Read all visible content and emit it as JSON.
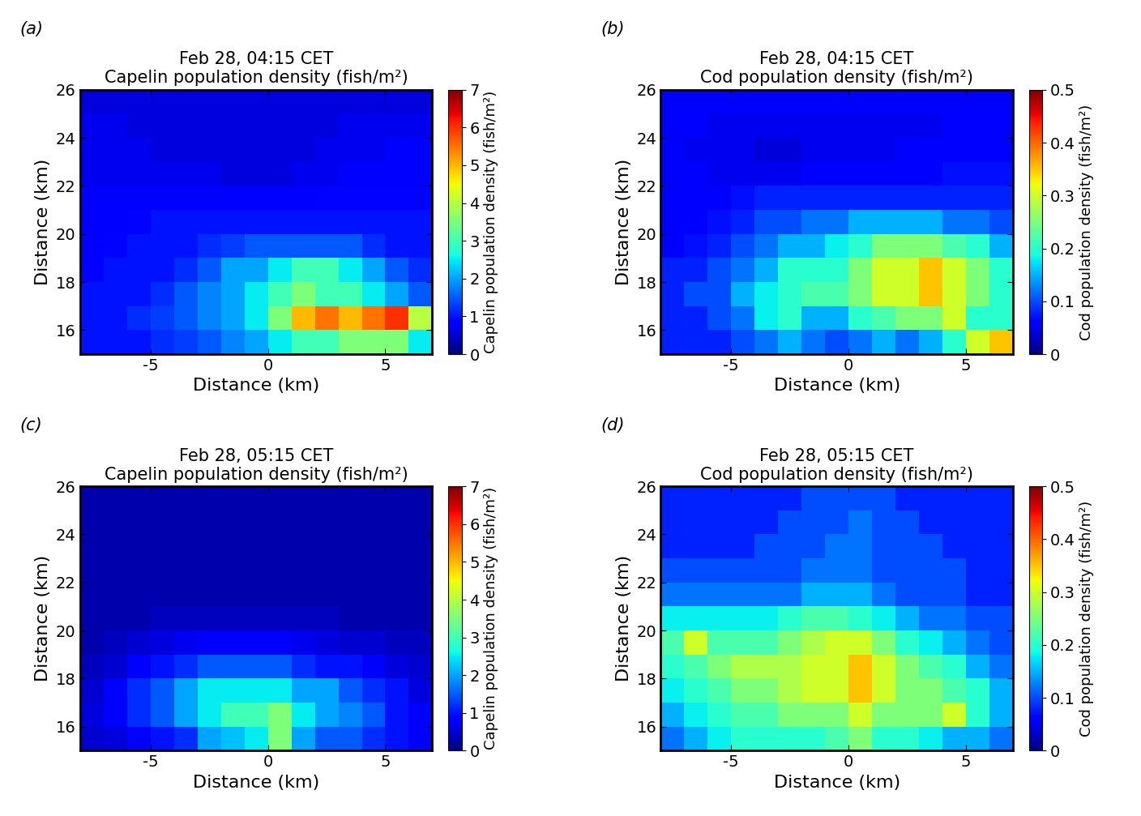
{
  "chart_data": [
    {
      "type": "heatmap",
      "panel": "(a)",
      "title": "Feb 28, 04:15 CET",
      "subtitle": "Capelin population density (fish/m²)",
      "x_label": "Distance (km)",
      "y_label": "Distance (km)",
      "xlim": [
        -8,
        7
      ],
      "ylim": [
        15,
        26
      ],
      "xticks": [
        -5,
        0,
        5
      ],
      "yticks": [
        16,
        18,
        20,
        22,
        24,
        26
      ],
      "x_edges": [
        -8,
        -7,
        -6,
        -5,
        -4,
        -3,
        -2,
        -1,
        0,
        1,
        2,
        3,
        4,
        5,
        6,
        7
      ],
      "y_edges": [
        15,
        16,
        17,
        18,
        19,
        20,
        21,
        22,
        23,
        24,
        25,
        26
      ],
      "colorbar_label": "Capelin population density (fish/m²)",
      "colorbar_lim": [
        0,
        7
      ],
      "colorbar_ticks": [
        0,
        1,
        2,
        3,
        4,
        5,
        6,
        7
      ],
      "cells": [
        [
          1,
          1,
          1,
          1.2,
          1.3,
          1.5,
          1.8,
          2,
          2.5,
          3,
          3,
          3.5,
          3.5,
          3.5,
          2.5
        ],
        [
          1,
          1,
          1.2,
          1.3,
          1.5,
          1.8,
          2,
          2.5,
          3.5,
          5,
          5.5,
          5,
          5.5,
          6,
          4
        ],
        [
          1,
          1,
          1,
          1.2,
          1.5,
          1.8,
          2,
          2.5,
          3,
          3.5,
          3,
          3,
          2.5,
          2,
          1.5
        ],
        [
          0.9,
          1,
          1,
          1,
          1.2,
          1.5,
          2,
          2,
          2.5,
          3,
          3,
          2.5,
          2,
          1.5,
          1.2
        ],
        [
          0.8,
          0.9,
          1,
          1,
          1,
          1.2,
          1.3,
          1.5,
          1.5,
          1.5,
          1.5,
          1.5,
          1.2,
          1,
          1
        ],
        [
          0.8,
          0.8,
          0.9,
          1,
          1,
          1,
          1,
          1,
          1,
          1,
          1,
          1,
          1,
          1,
          1
        ],
        [
          0.8,
          0.8,
          0.8,
          0.8,
          0.8,
          0.8,
          0.8,
          0.8,
          0.8,
          0.8,
          0.9,
          0.9,
          0.9,
          0.9,
          0.9
        ],
        [
          0.7,
          0.7,
          0.7,
          0.7,
          0.7,
          0.7,
          0.6,
          0.6,
          0.6,
          0.7,
          0.7,
          0.8,
          0.8,
          0.8,
          0.8
        ],
        [
          0.7,
          0.7,
          0.7,
          0.6,
          0.6,
          0.6,
          0.6,
          0.6,
          0.6,
          0.6,
          0.7,
          0.7,
          0.7,
          0.8,
          0.8
        ],
        [
          0.7,
          0.7,
          0.6,
          0.6,
          0.6,
          0.6,
          0.6,
          0.6,
          0.6,
          0.6,
          0.6,
          0.7,
          0.7,
          0.7,
          0.7
        ],
        [
          0.6,
          0.6,
          0.6,
          0.6,
          0.6,
          0.6,
          0.6,
          0.6,
          0.6,
          0.6,
          0.6,
          0.6,
          0.6,
          0.6,
          0.6
        ]
      ]
    },
    {
      "type": "heatmap",
      "panel": "(b)",
      "title": "Feb 28, 04:15 CET",
      "subtitle": "Cod population density (fish/m²)",
      "x_label": "Distance (km)",
      "y_label": "Distance (km)",
      "xlim": [
        -8,
        7
      ],
      "ylim": [
        15,
        26
      ],
      "xticks": [
        -5,
        0,
        5
      ],
      "yticks": [
        16,
        18,
        20,
        22,
        24,
        26
      ],
      "x_edges": [
        -8,
        -7,
        -6,
        -5,
        -4,
        -3,
        -2,
        -1,
        0,
        1,
        2,
        3,
        4,
        5,
        6,
        7
      ],
      "y_edges": [
        15,
        16,
        17,
        18,
        19,
        20,
        21,
        22,
        23,
        24,
        25,
        26
      ],
      "colorbar_label": "Cod population density (fish/m²)",
      "colorbar_lim": [
        0,
        0.5
      ],
      "colorbar_ticks": [
        0,
        0.1,
        0.2,
        0.3,
        0.4,
        0.5
      ],
      "cells": [
        [
          0.08,
          0.08,
          0.08,
          0.1,
          0.12,
          0.15,
          0.12,
          0.1,
          0.12,
          0.15,
          0.12,
          0.15,
          0.2,
          0.3,
          0.35
        ],
        [
          0.08,
          0.08,
          0.1,
          0.12,
          0.18,
          0.2,
          0.15,
          0.15,
          0.2,
          0.22,
          0.25,
          0.25,
          0.3,
          0.2,
          0.2
        ],
        [
          0.08,
          0.1,
          0.1,
          0.15,
          0.18,
          0.2,
          0.22,
          0.22,
          0.25,
          0.3,
          0.3,
          0.35,
          0.3,
          0.25,
          0.2
        ],
        [
          0.08,
          0.08,
          0.1,
          0.12,
          0.15,
          0.2,
          0.2,
          0.2,
          0.25,
          0.3,
          0.3,
          0.35,
          0.3,
          0.25,
          0.2
        ],
        [
          0.06,
          0.07,
          0.08,
          0.1,
          0.12,
          0.15,
          0.15,
          0.18,
          0.2,
          0.25,
          0.25,
          0.25,
          0.22,
          0.2,
          0.15
        ],
        [
          0.06,
          0.06,
          0.07,
          0.08,
          0.1,
          0.1,
          0.12,
          0.12,
          0.15,
          0.15,
          0.15,
          0.15,
          0.12,
          0.12,
          0.1
        ],
        [
          0.06,
          0.06,
          0.06,
          0.07,
          0.08,
          0.08,
          0.08,
          0.08,
          0.08,
          0.08,
          0.08,
          0.08,
          0.08,
          0.08,
          0.08
        ],
        [
          0.06,
          0.06,
          0.05,
          0.05,
          0.05,
          0.05,
          0.06,
          0.06,
          0.06,
          0.06,
          0.06,
          0.06,
          0.07,
          0.07,
          0.07
        ],
        [
          0.06,
          0.05,
          0.05,
          0.05,
          0.04,
          0.04,
          0.05,
          0.05,
          0.05,
          0.05,
          0.06,
          0.06,
          0.06,
          0.06,
          0.06
        ],
        [
          0.06,
          0.06,
          0.05,
          0.05,
          0.05,
          0.05,
          0.05,
          0.05,
          0.05,
          0.05,
          0.05,
          0.05,
          0.06,
          0.06,
          0.06
        ],
        [
          0.06,
          0.06,
          0.06,
          0.06,
          0.06,
          0.06,
          0.06,
          0.06,
          0.06,
          0.06,
          0.06,
          0.06,
          0.06,
          0.06,
          0.06
        ]
      ]
    },
    {
      "type": "heatmap",
      "panel": "(c)",
      "title": "Feb 28, 05:15 CET",
      "subtitle": "Capelin population density (fish/m²)",
      "x_label": "Distance (km)",
      "y_label": "Distance (km)",
      "xlim": [
        -8,
        7
      ],
      "ylim": [
        15,
        26
      ],
      "xticks": [
        -5,
        0,
        5
      ],
      "yticks": [
        16,
        18,
        20,
        22,
        24,
        26
      ],
      "x_edges": [
        -8,
        -7,
        -6,
        -5,
        -4,
        -3,
        -2,
        -1,
        0,
        1,
        2,
        3,
        4,
        5,
        6,
        7
      ],
      "y_edges": [
        15,
        16,
        17,
        18,
        19,
        20,
        21,
        22,
        23,
        24,
        25,
        26
      ],
      "colorbar_label": "Capelin population density (fish/m²)",
      "colorbar_lim": [
        0,
        7
      ],
      "colorbar_ticks": [
        0,
        1,
        2,
        3,
        4,
        5,
        6,
        7
      ],
      "cells": [
        [
          0.5,
          0.6,
          0.8,
          1,
          1.2,
          2,
          2.2,
          2.5,
          3.5,
          2,
          1.5,
          1.5,
          1.2,
          1,
          0.8
        ],
        [
          0.6,
          0.8,
          1.2,
          1.5,
          2,
          2.5,
          3,
          3,
          3.5,
          2.5,
          2,
          1.8,
          1.5,
          1,
          0.8
        ],
        [
          0.5,
          0.8,
          1.2,
          1.5,
          2,
          2.5,
          2.5,
          2.5,
          2.5,
          2,
          2,
          1.5,
          1.2,
          1,
          0.6
        ],
        [
          0.4,
          0.5,
          0.8,
          1,
          1.2,
          1.5,
          1.5,
          1.5,
          1.5,
          1.2,
          1,
          1,
          0.8,
          0.6,
          0.5
        ],
        [
          0.3,
          0.4,
          0.5,
          0.6,
          0.7,
          0.8,
          0.8,
          0.8,
          0.8,
          0.7,
          0.6,
          0.5,
          0.5,
          0.4,
          0.4
        ],
        [
          0.3,
          0.3,
          0.3,
          0.4,
          0.4,
          0.4,
          0.4,
          0.4,
          0.4,
          0.4,
          0.4,
          0.3,
          0.3,
          0.3,
          0.3
        ],
        [
          0.3,
          0.3,
          0.3,
          0.3,
          0.3,
          0.3,
          0.3,
          0.3,
          0.3,
          0.3,
          0.3,
          0.3,
          0.3,
          0.3,
          0.3
        ],
        [
          0.3,
          0.3,
          0.3,
          0.3,
          0.3,
          0.3,
          0.3,
          0.3,
          0.3,
          0.3,
          0.3,
          0.3,
          0.3,
          0.3,
          0.3
        ],
        [
          0.3,
          0.3,
          0.3,
          0.3,
          0.3,
          0.3,
          0.3,
          0.3,
          0.3,
          0.3,
          0.3,
          0.3,
          0.3,
          0.3,
          0.3
        ],
        [
          0.3,
          0.3,
          0.3,
          0.3,
          0.3,
          0.3,
          0.3,
          0.3,
          0.3,
          0.3,
          0.3,
          0.3,
          0.3,
          0.3,
          0.3
        ],
        [
          0.3,
          0.3,
          0.3,
          0.3,
          0.3,
          0.3,
          0.3,
          0.3,
          0.3,
          0.3,
          0.3,
          0.3,
          0.3,
          0.3,
          0.3
        ]
      ]
    },
    {
      "type": "heatmap",
      "panel": "(d)",
      "title": "Feb 28, 05:15 CET",
      "subtitle": "Cod population density (fish/m²)",
      "x_label": "Distance (km)",
      "y_label": "Distance (km)",
      "xlim": [
        -8,
        7
      ],
      "ylim": [
        15,
        26
      ],
      "xticks": [
        -5,
        0,
        5
      ],
      "yticks": [
        16,
        18,
        20,
        22,
        24,
        26
      ],
      "x_edges": [
        -8,
        -7,
        -6,
        -5,
        -4,
        -3,
        -2,
        -1,
        0,
        1,
        2,
        3,
        4,
        5,
        6,
        7
      ],
      "y_edges": [
        15,
        16,
        17,
        18,
        19,
        20,
        21,
        22,
        23,
        24,
        25,
        26
      ],
      "colorbar_label": "Cod population density (fish/m²)",
      "colorbar_lim": [
        0,
        0.5
      ],
      "colorbar_ticks": [
        0,
        0.1,
        0.2,
        0.3,
        0.4,
        0.5
      ],
      "cells": [
        [
          0.12,
          0.15,
          0.18,
          0.2,
          0.2,
          0.2,
          0.2,
          0.22,
          0.25,
          0.2,
          0.2,
          0.18,
          0.15,
          0.15,
          0.12
        ],
        [
          0.15,
          0.18,
          0.2,
          0.22,
          0.22,
          0.25,
          0.25,
          0.25,
          0.3,
          0.25,
          0.25,
          0.25,
          0.3,
          0.2,
          0.15
        ],
        [
          0.18,
          0.2,
          0.22,
          0.25,
          0.25,
          0.28,
          0.3,
          0.3,
          0.35,
          0.3,
          0.25,
          0.25,
          0.22,
          0.2,
          0.15
        ],
        [
          0.2,
          0.22,
          0.25,
          0.28,
          0.28,
          0.28,
          0.3,
          0.3,
          0.35,
          0.3,
          0.25,
          0.22,
          0.2,
          0.15,
          0.12
        ],
        [
          0.22,
          0.3,
          0.22,
          0.22,
          0.22,
          0.25,
          0.28,
          0.3,
          0.3,
          0.25,
          0.2,
          0.18,
          0.15,
          0.12,
          0.1
        ],
        [
          0.18,
          0.18,
          0.18,
          0.18,
          0.18,
          0.2,
          0.22,
          0.22,
          0.2,
          0.18,
          0.15,
          0.12,
          0.12,
          0.1,
          0.1
        ],
        [
          0.12,
          0.12,
          0.12,
          0.12,
          0.12,
          0.12,
          0.15,
          0.15,
          0.15,
          0.12,
          0.1,
          0.1,
          0.1,
          0.08,
          0.08
        ],
        [
          0.1,
          0.1,
          0.1,
          0.1,
          0.1,
          0.1,
          0.12,
          0.12,
          0.12,
          0.1,
          0.1,
          0.1,
          0.1,
          0.08,
          0.08
        ],
        [
          0.08,
          0.08,
          0.08,
          0.08,
          0.1,
          0.1,
          0.1,
          0.12,
          0.12,
          0.1,
          0.1,
          0.1,
          0.08,
          0.08,
          0.08
        ],
        [
          0.08,
          0.08,
          0.08,
          0.08,
          0.08,
          0.1,
          0.1,
          0.1,
          0.12,
          0.1,
          0.1,
          0.08,
          0.08,
          0.08,
          0.08
        ],
        [
          0.08,
          0.08,
          0.08,
          0.08,
          0.08,
          0.08,
          0.1,
          0.1,
          0.1,
          0.1,
          0.08,
          0.08,
          0.08,
          0.08,
          0.08
        ]
      ]
    }
  ]
}
